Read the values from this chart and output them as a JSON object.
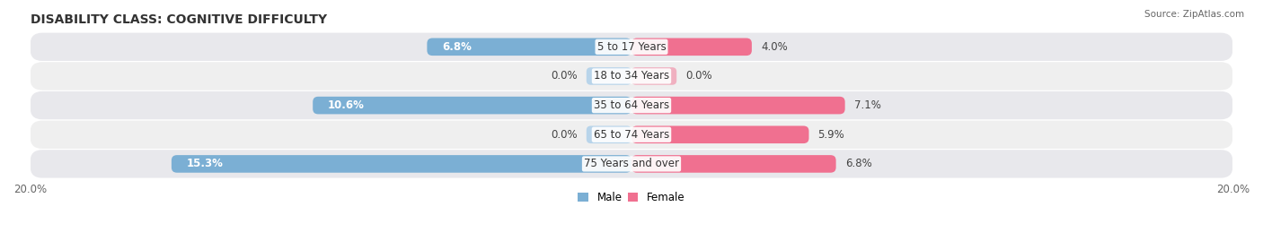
{
  "title": "DISABILITY CLASS: COGNITIVE DIFFICULTY",
  "source": "Source: ZipAtlas.com",
  "categories": [
    "75 Years and over",
    "65 to 74 Years",
    "35 to 64 Years",
    "18 to 34 Years",
    "5 to 17 Years"
  ],
  "male_values": [
    15.3,
    0.0,
    10.6,
    0.0,
    6.8
  ],
  "female_values": [
    6.8,
    5.9,
    7.1,
    0.0,
    4.0
  ],
  "max_val": 20.0,
  "male_color": "#7bafd4",
  "female_color": "#f07090",
  "male_color_light": "#b8d4ea",
  "female_color_light": "#f0b0c0",
  "title_fontsize": 10,
  "label_fontsize": 8.5,
  "tick_fontsize": 8.5,
  "x_min": -20.0,
  "x_max": 20.0,
  "legend_male": "Male",
  "legend_female": "Female",
  "row_colors": [
    "#e8e8ec",
    "#efefef",
    "#e8e8ec",
    "#efefef",
    "#e8e8ec"
  ]
}
